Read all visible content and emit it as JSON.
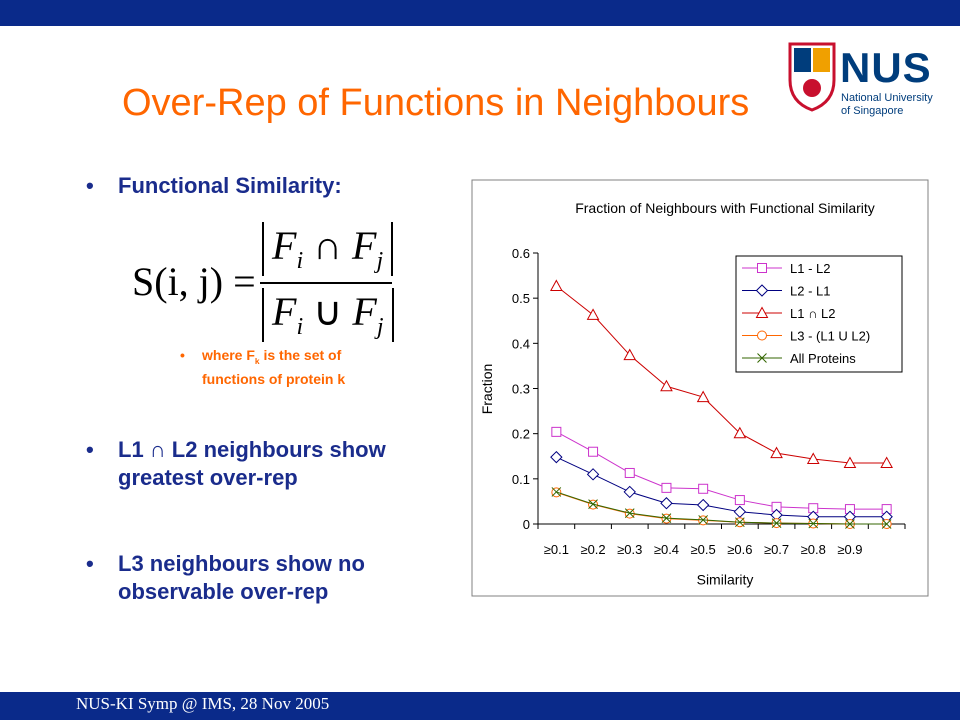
{
  "slide": {
    "title": "Over-Rep of Functions in Neighbours",
    "logo": {
      "name": "NUS",
      "line1": "National University",
      "line2": "of Singapore"
    },
    "bullets": [
      "Functional Similarity:",
      "L1 ∩ L2 neighbours show greatest over-rep",
      "L3 neighbours show no observable over-rep"
    ],
    "formula": {
      "lhs": "S(i, j) =",
      "num": {
        "a": "F",
        "a_sub": "i",
        "op": "∩",
        "b": "F",
        "b_sub": "j"
      },
      "den": {
        "a": "F",
        "a_sub": "i",
        "op": "∪",
        "b": "F",
        "b_sub": "j"
      }
    },
    "sub_bullet": {
      "text1": "where F",
      "sub": "k",
      "text2": " is the set of functions of protein k"
    },
    "footer": "NUS-KI Symp @ IMS, 28 Nov 2005"
  },
  "chart_data": {
    "type": "line",
    "title": "Fraction of Neighbours with Functional Similarity",
    "x_label": "Similarity",
    "y_label": "Fraction",
    "categories": [
      "≥0.1",
      "≥0.2",
      "≥0.3",
      "≥0.4",
      "≥0.5",
      "≥0.6",
      "≥0.7",
      "≥0.8",
      "≥0.9",
      null
    ],
    "ylim": [
      0,
      0.6
    ],
    "yticks": [
      0,
      0.1,
      0.2,
      0.3,
      0.4,
      0.5,
      0.6
    ],
    "series": [
      {
        "name": "L1 - L2",
        "color": "#cc33cc",
        "marker": "square",
        "values": [
          0.204,
          0.16,
          0.113,
          0.08,
          0.078,
          0.053,
          0.038,
          0.035,
          0.033,
          0.033
        ]
      },
      {
        "name": "L2 - L1",
        "color": "#000080",
        "marker": "diamond",
        "values": [
          0.148,
          0.11,
          0.071,
          0.046,
          0.042,
          0.027,
          0.02,
          0.016,
          0.016,
          0.016
        ]
      },
      {
        "name": "L1 ∩ L2",
        "color": "#cc0000",
        "marker": "triangle",
        "values": [
          0.527,
          0.463,
          0.374,
          0.305,
          0.281,
          0.201,
          0.157,
          0.144,
          0.135,
          0.135
        ]
      },
      {
        "name": "L3 - (L1 U L2)",
        "color": "#ff6600",
        "marker": "circle",
        "values": [
          0.07,
          0.043,
          0.023,
          0.012,
          0.008,
          0.004,
          0.002,
          0.001,
          0,
          0
        ]
      },
      {
        "name": "All Proteins",
        "color": "#336600",
        "marker": "x",
        "values": [
          0.071,
          0.044,
          0.024,
          0.013,
          0.009,
          0.004,
          0.002,
          0.001,
          0,
          0
        ]
      }
    ]
  }
}
